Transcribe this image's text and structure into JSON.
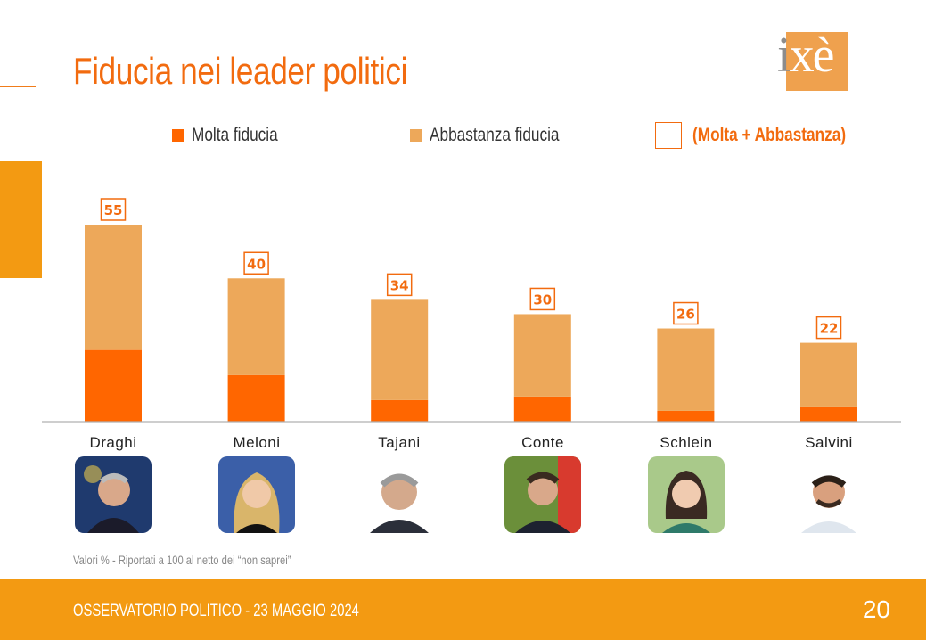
{
  "header": {
    "title": "Fiducia nei leader politici"
  },
  "logo": {
    "text": "ixè",
    "colors": {
      "box": "#efa14e",
      "i": "#8c8c8c",
      "letters": "#ffffff"
    }
  },
  "legend": {
    "molta": "Molta fiducia",
    "abbastanza": "Abbastanza fiducia",
    "total": "(Molta + Abbastanza)"
  },
  "colors": {
    "molta": "#ff6600",
    "abbastanza": "#eda85a",
    "accent": "#f26b0f",
    "footer": "#f39a12"
  },
  "chart_data": {
    "type": "bar",
    "stacked": true,
    "categories": [
      "Draghi",
      "Meloni",
      "Tajani",
      "Conte",
      "Schlein",
      "Salvini"
    ],
    "series": [
      {
        "name": "Molta fiducia",
        "values": [
          20,
          13,
          6,
          7,
          3,
          4
        ]
      },
      {
        "name": "Abbastanza fiducia",
        "values": [
          35,
          27,
          28,
          23,
          23,
          18
        ]
      }
    ],
    "totals": [
      55,
      40,
      34,
      30,
      26,
      22
    ],
    "ylim": [
      0,
      55
    ],
    "grid": false
  },
  "leaders": [
    {
      "name": "Draghi",
      "photo": "draghi-photo"
    },
    {
      "name": "Meloni",
      "photo": "meloni-photo"
    },
    {
      "name": "Tajani",
      "photo": "tajani-photo"
    },
    {
      "name": "Conte",
      "photo": "conte-photo"
    },
    {
      "name": "Schlein",
      "photo": "schlein-photo"
    },
    {
      "name": "Salvini",
      "photo": "salvini-photo"
    }
  ],
  "footnote": "Valori % - Riportati a 100 al netto dei “non saprei”",
  "footer": {
    "text": "OSSERVATORIO POLITICO - 23 MAGGIO 2024",
    "page": "20"
  }
}
